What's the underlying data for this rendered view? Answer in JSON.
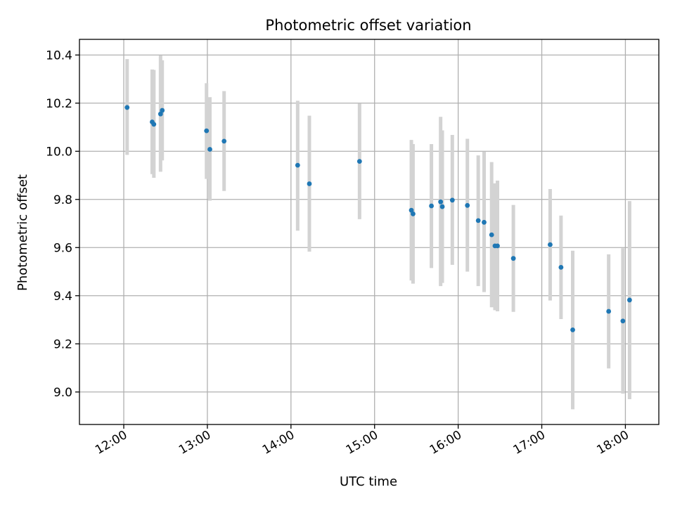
{
  "chart_data": {
    "type": "scatter",
    "title": "Photometric offset variation",
    "xlabel": "UTC time",
    "ylabel": "Photometric offset",
    "xlim_hours": [
      11.47,
      18.4
    ],
    "ylim": [
      8.865,
      10.465
    ],
    "grid": true,
    "x_ticks": [
      {
        "hour": 12,
        "label": "12:00"
      },
      {
        "hour": 13,
        "label": "13:00"
      },
      {
        "hour": 14,
        "label": "14:00"
      },
      {
        "hour": 15,
        "label": "15:00"
      },
      {
        "hour": 16,
        "label": "16:00"
      },
      {
        "hour": 17,
        "label": "17:00"
      },
      {
        "hour": 18,
        "label": "18:00"
      }
    ],
    "y_ticks": [
      {
        "value": 9.0,
        "label": "9.0"
      },
      {
        "value": 9.2,
        "label": "9.2"
      },
      {
        "value": 9.4,
        "label": "9.4"
      },
      {
        "value": 9.6,
        "label": "9.6"
      },
      {
        "value": 9.8,
        "label": "9.8"
      },
      {
        "value": 10.0,
        "label": "10.0"
      },
      {
        "value": 10.2,
        "label": "10.2"
      },
      {
        "value": 10.4,
        "label": "10.4"
      }
    ],
    "marker_color": "#1f77b4",
    "errorbar_color": "#d3d3d3",
    "points": [
      {
        "t": 12.04,
        "y": 10.182,
        "lo": 9.985,
        "hi": 10.383
      },
      {
        "t": 12.34,
        "y": 10.122,
        "lo": 9.905,
        "hi": 10.34
      },
      {
        "t": 12.36,
        "y": 10.112,
        "lo": 9.89,
        "hi": 10.338
      },
      {
        "t": 12.44,
        "y": 10.155,
        "lo": 9.915,
        "hi": 10.398
      },
      {
        "t": 12.46,
        "y": 10.17,
        "lo": 9.962,
        "hi": 10.378
      },
      {
        "t": 12.99,
        "y": 10.085,
        "lo": 9.885,
        "hi": 10.283
      },
      {
        "t": 13.03,
        "y": 10.008,
        "lo": 9.795,
        "hi": 10.225
      },
      {
        "t": 13.2,
        "y": 10.042,
        "lo": 9.835,
        "hi": 10.25
      },
      {
        "t": 14.08,
        "y": 9.942,
        "lo": 9.67,
        "hi": 10.21
      },
      {
        "t": 14.22,
        "y": 9.865,
        "lo": 9.583,
        "hi": 10.148
      },
      {
        "t": 14.82,
        "y": 9.958,
        "lo": 9.718,
        "hi": 10.198
      },
      {
        "t": 15.44,
        "y": 9.755,
        "lo": 9.463,
        "hi": 10.047
      },
      {
        "t": 15.46,
        "y": 9.74,
        "lo": 9.45,
        "hi": 10.03
      },
      {
        "t": 15.68,
        "y": 9.773,
        "lo": 9.515,
        "hi": 10.03
      },
      {
        "t": 15.79,
        "y": 9.79,
        "lo": 9.44,
        "hi": 10.143
      },
      {
        "t": 15.81,
        "y": 9.77,
        "lo": 9.453,
        "hi": 10.087
      },
      {
        "t": 15.93,
        "y": 9.797,
        "lo": 9.528,
        "hi": 10.068
      },
      {
        "t": 16.11,
        "y": 9.775,
        "lo": 9.5,
        "hi": 10.052
      },
      {
        "t": 16.24,
        "y": 9.712,
        "lo": 9.44,
        "hi": 9.983
      },
      {
        "t": 16.31,
        "y": 9.705,
        "lo": 9.415,
        "hi": 9.998
      },
      {
        "t": 16.4,
        "y": 9.653,
        "lo": 9.352,
        "hi": 9.955
      },
      {
        "t": 16.44,
        "y": 9.607,
        "lo": 9.34,
        "hi": 9.867
      },
      {
        "t": 16.47,
        "y": 9.607,
        "lo": 9.335,
        "hi": 9.878
      },
      {
        "t": 16.66,
        "y": 9.555,
        "lo": 9.333,
        "hi": 9.777
      },
      {
        "t": 17.1,
        "y": 9.612,
        "lo": 9.38,
        "hi": 9.843
      },
      {
        "t": 17.23,
        "y": 9.518,
        "lo": 9.303,
        "hi": 9.733
      },
      {
        "t": 17.37,
        "y": 9.258,
        "lo": 8.928,
        "hi": 9.587
      },
      {
        "t": 17.8,
        "y": 9.335,
        "lo": 9.098,
        "hi": 9.572
      },
      {
        "t": 17.97,
        "y": 9.295,
        "lo": 8.993,
        "hi": 9.597
      },
      {
        "t": 18.05,
        "y": 9.382,
        "lo": 8.97,
        "hi": 9.793
      }
    ]
  }
}
